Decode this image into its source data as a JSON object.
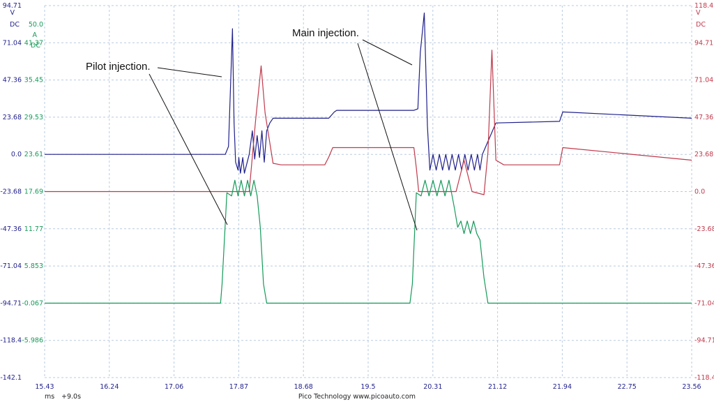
{
  "chart_data": {
    "type": "line",
    "x_ticks": [
      "15.43",
      "16.24",
      "17.06",
      "17.87",
      "18.68",
      "19.5",
      "20.31",
      "21.12",
      "21.94",
      "22.75",
      "23.56"
    ],
    "x_unit": "ms",
    "x_offset": "+9.0s",
    "footer": "Pico Technology   www.picoauto.com",
    "axes": {
      "left_v": {
        "color": "#1f1f8c",
        "unit": "V",
        "coupling": "DC",
        "ticks": [
          "94.71",
          "71.04",
          "47.36",
          "23.68",
          "0.0",
          "-23.68",
          "-47.36",
          "-71.04",
          "-94.71",
          "-118.4",
          "-142.1"
        ]
      },
      "left_a": {
        "color": "#159a59",
        "scale_top": "50.0",
        "unit": "A",
        "coupling": "DC",
        "ticks": [
          "41.37",
          "35.45",
          "29.53",
          "23.61",
          "17.69",
          "11.77",
          "5.853",
          "-0.067",
          "-5.986"
        ]
      },
      "right_v": {
        "color": "#c0394b",
        "unit": "V",
        "coupling": "DC",
        "ticks": [
          "118.4",
          "94.71",
          "71.04",
          "47.36",
          "23.68",
          "0.0",
          "-23.68",
          "-47.36",
          "-71.04",
          "-94.71",
          "-118.4"
        ]
      }
    },
    "series": [
      {
        "color": "#1f1f8c",
        "x": [
          15.43,
          17.65,
          17.7,
          17.74,
          17.79,
          17.81,
          17.83,
          17.86,
          17.87,
          17.89,
          17.92,
          17.94,
          18.0,
          18.04,
          18.07,
          18.1,
          18.13,
          18.16,
          18.19,
          18.22,
          18.26,
          18.3,
          18.4,
          19.0,
          19.07,
          19.1,
          20.07,
          20.12,
          20.15,
          20.2,
          20.24,
          20.27,
          20.31,
          20.35,
          20.39,
          20.43,
          20.47,
          20.51,
          20.55,
          20.59,
          20.63,
          20.67,
          20.71,
          20.75,
          20.79,
          20.83,
          20.87,
          20.9,
          20.93,
          21.1,
          21.9,
          21.94,
          23.56
        ],
        "y": [
          0.0,
          0.0,
          0.0,
          5,
          80,
          20,
          -5,
          -10,
          -2,
          -12,
          -2,
          -12,
          0,
          15,
          -3,
          12,
          -2,
          15,
          -5,
          15,
          20,
          23,
          23,
          23,
          27,
          28,
          28,
          29,
          65,
          90,
          18,
          -10,
          0,
          -10,
          0,
          -10,
          0,
          -10,
          0,
          -10,
          0,
          -10,
          0,
          -10,
          0,
          -10,
          0,
          -10,
          0,
          20,
          21,
          27,
          23
        ]
      },
      {
        "color": "#c0394b",
        "x": [
          15.43,
          17.87,
          18.0,
          18.08,
          18.15,
          18.2,
          18.3,
          18.4,
          18.5,
          18.95,
          19.0,
          19.05,
          19.1,
          20.07,
          20.1,
          20.13,
          20.2,
          20.3,
          20.4,
          20.6,
          20.7,
          20.8,
          20.95,
          21.0,
          21.05,
          21.1,
          21.2,
          21.9,
          21.94,
          23.56
        ],
        "y": [
          0.0,
          0.0,
          0.0,
          45,
          80,
          50,
          18,
          17,
          17,
          17,
          22,
          28,
          28,
          28,
          15,
          0,
          0,
          0,
          0,
          0,
          20,
          0,
          -2,
          25,
          90,
          20,
          17,
          17,
          28,
          20
        ]
      },
      {
        "color": "#159a59",
        "x": [
          15.43,
          17.64,
          17.66,
          17.72,
          17.78,
          17.82,
          17.86,
          17.9,
          17.94,
          17.98,
          18.02,
          18.06,
          18.1,
          18.14,
          18.18,
          18.22,
          18.26,
          18.3,
          20.02,
          20.05,
          20.1,
          20.16,
          20.21,
          20.26,
          20.31,
          20.36,
          20.41,
          20.46,
          20.51,
          20.55,
          20.58,
          20.62,
          20.66,
          20.7,
          20.74,
          20.78,
          20.82,
          20.86,
          20.9,
          20.95,
          21.0,
          21.04,
          23.56
        ],
        "y": [
          -0.067,
          -0.067,
          3,
          17.5,
          17.0,
          19.5,
          17.0,
          19.5,
          17.0,
          19.5,
          17.0,
          19.5,
          17.0,
          12,
          3,
          -0.067,
          -0.067,
          -0.067,
          -0.067,
          3,
          17.5,
          17.0,
          19.5,
          17.0,
          19.5,
          17.0,
          19.5,
          17.0,
          19.5,
          17.0,
          15,
          12,
          13,
          11,
          13,
          11,
          13,
          11,
          10,
          4,
          -0.067,
          -0.067,
          -0.067
        ]
      }
    ],
    "annotations": [
      {
        "text": "Pilot injection."
      },
      {
        "text": "Main injection."
      }
    ]
  }
}
